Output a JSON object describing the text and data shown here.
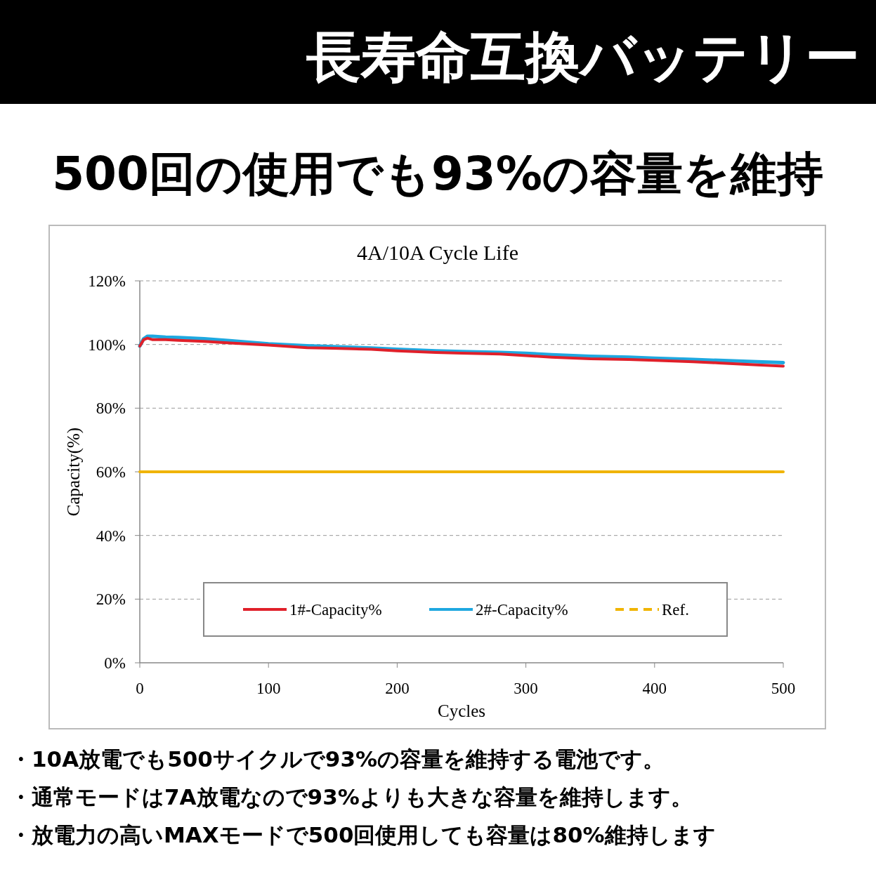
{
  "chart_data": {
    "type": "line",
    "title": "4A/10A Cycle Life",
    "xlabel": "Cycles",
    "ylabel": "Capacity(%)",
    "annotations": [
      "長寿命互換バッテリー",
      "500回の使用でも93%の容量を維持",
      "・10A放電でも500サイクルで93%の容量を維持する電池です。",
      "・通常モードは7A放電なので93%よりも大きな容量を維持します。",
      "・放電力の高いMAXモードで500回使用しても容量は80%維持します"
    ],
    "xlim": [
      0,
      500
    ],
    "xticks": [
      0,
      100,
      200,
      300,
      400,
      500
    ],
    "ylim": [
      0,
      120
    ],
    "yticks": [
      {
        "value": 0,
        "label": "0%"
      },
      {
        "value": 20,
        "label": "20%"
      },
      {
        "value": 40,
        "label": "40%"
      },
      {
        "value": 60,
        "label": "60%"
      },
      {
        "value": 80,
        "label": "80%"
      },
      {
        "value": 100,
        "label": "100%"
      },
      {
        "value": 120,
        "label": "120%"
      }
    ],
    "grid": "y",
    "legend": "bottom",
    "marker": "none",
    "series": [
      {
        "name": "1#-Capacity%",
        "color": "#e0202a",
        "x": [
          0,
          3,
          6,
          10,
          20,
          30,
          50,
          70,
          100,
          130,
          150,
          180,
          200,
          230,
          250,
          280,
          300,
          320,
          350,
          380,
          400,
          430,
          450,
          480,
          500
        ],
        "values": [
          99.5,
          101.5,
          102,
          101.5,
          101.5,
          101.3,
          101,
          100.5,
          99.8,
          99,
          98.8,
          98.5,
          98,
          97.5,
          97.3,
          97,
          96.5,
          96,
          95.5,
          95.3,
          95,
          94.6,
          94.2,
          93.6,
          93.2
        ]
      },
      {
        "name": "2#-Capacity%",
        "color": "#1ea8e0",
        "x": [
          0,
          3,
          6,
          10,
          20,
          30,
          50,
          70,
          100,
          130,
          150,
          180,
          200,
          230,
          250,
          280,
          300,
          320,
          350,
          380,
          400,
          430,
          450,
          480,
          500
        ],
        "values": [
          99.5,
          101.8,
          102.6,
          102.6,
          102.3,
          102.2,
          101.8,
          101.2,
          100.2,
          99.6,
          99.3,
          98.9,
          98.5,
          98,
          97.8,
          97.5,
          97.2,
          96.8,
          96.3,
          96,
          95.7,
          95.3,
          95,
          94.6,
          94.3
        ]
      },
      {
        "name": "Ref.",
        "color": "#f0b400",
        "x": [
          0,
          500
        ],
        "values": [
          60,
          60
        ]
      }
    ]
  }
}
